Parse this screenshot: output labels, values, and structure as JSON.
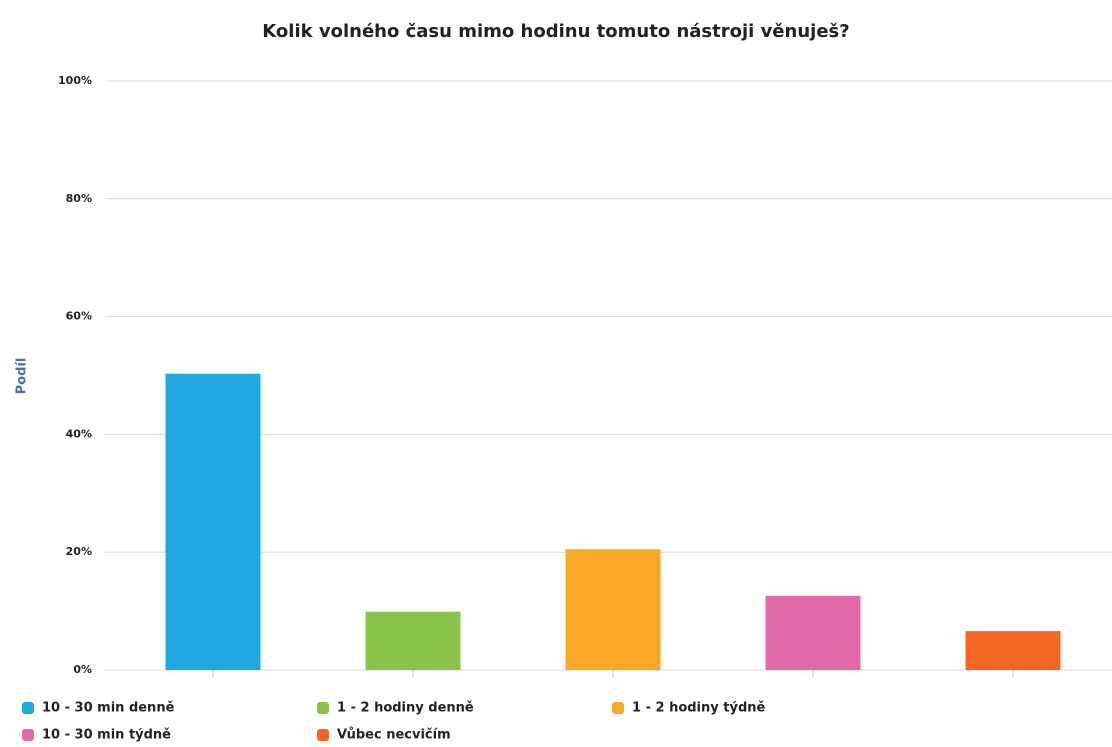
{
  "chart_data": {
    "type": "bar",
    "title": "Kolik volného času mimo hodinu tomuto nástroji věnuješ?",
    "y_label": "Podíl",
    "categories": [
      "10 - 30 min denně",
      "1 - 2 hodiny denně",
      "1 - 2 hodiny týdně",
      "10 - 30 min týdně",
      "Vůbec necvičím"
    ],
    "values": [
      50.3,
      9.9,
      20.5,
      12.6,
      6.6
    ],
    "colors": [
      "#1fa8e0",
      "#8bc34a",
      "#f9a825",
      "#e36aa8",
      "#f26522"
    ],
    "ylim": [
      0,
      100
    ],
    "yticks": [
      {
        "value": 0,
        "label": "0%"
      },
      {
        "value": 20,
        "label": "20%"
      },
      {
        "value": 40,
        "label": "40%"
      },
      {
        "value": 60,
        "label": "60%"
      },
      {
        "value": 80,
        "label": "80%"
      },
      {
        "value": 100,
        "label": "100%"
      }
    ],
    "grid": true,
    "legend": "bottom"
  }
}
